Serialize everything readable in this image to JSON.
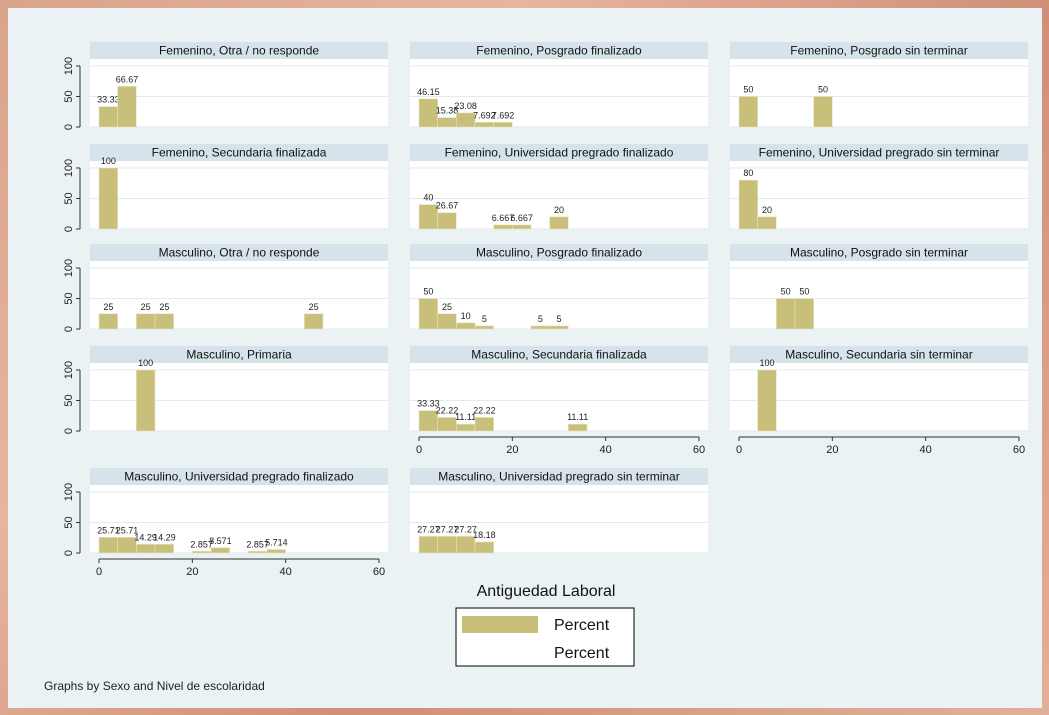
{
  "chart_data": {
    "type": "bar",
    "xlabel": "Antiguedad Laboral",
    "note": "Graphs by Sexo and Nivel de escolaridad",
    "legend": [
      "Percent",
      "Percent"
    ],
    "legend_position": "bottom",
    "xlim": [
      0,
      60
    ],
    "ylim": [
      0,
      100
    ],
    "xticks": [
      0,
      20,
      40,
      60
    ],
    "yticks": [
      0,
      50,
      100
    ],
    "bin_width": 4,
    "bar_color": "#c8bf7b",
    "header_color": "#d6e3ea",
    "grid": true,
    "panels": [
      {
        "title": "Femenino, Otra / no responde",
        "bars": [
          {
            "x": 0,
            "value": 33.33,
            "label": "33.33"
          },
          {
            "x": 4,
            "value": 66.67,
            "label": "66.67"
          }
        ]
      },
      {
        "title": "Femenino, Posgrado finalizado",
        "bars": [
          {
            "x": 0,
            "value": 46.15,
            "label": "46.15"
          },
          {
            "x": 4,
            "value": 15.38,
            "label": "15.38"
          },
          {
            "x": 8,
            "value": 23.08,
            "label": "23.08"
          },
          {
            "x": 12,
            "value": 7.692,
            "label": "7.692"
          },
          {
            "x": 16,
            "value": 7.692,
            "label": "7.692"
          }
        ]
      },
      {
        "title": "Femenino, Posgrado sin terminar",
        "bars": [
          {
            "x": 0,
            "value": 50,
            "label": "50"
          },
          {
            "x": 16,
            "value": 50,
            "label": "50"
          }
        ]
      },
      {
        "title": "Femenino, Secundaria finalizada",
        "bars": [
          {
            "x": 0,
            "value": 100,
            "label": "100"
          }
        ]
      },
      {
        "title": "Femenino, Universidad pregrado finalizado",
        "bars": [
          {
            "x": 0,
            "value": 40,
            "label": "40"
          },
          {
            "x": 4,
            "value": 26.67,
            "label": "26.67"
          },
          {
            "x": 16,
            "value": 6.667,
            "label": "6.667"
          },
          {
            "x": 20,
            "value": 6.667,
            "label": "6.667"
          },
          {
            "x": 28,
            "value": 20,
            "label": "20"
          }
        ]
      },
      {
        "title": "Femenino, Universidad pregrado sin terminar",
        "bars": [
          {
            "x": 0,
            "value": 80,
            "label": "80"
          },
          {
            "x": 4,
            "value": 20,
            "label": "20"
          }
        ]
      },
      {
        "title": "Masculino, Otra / no responde",
        "bars": [
          {
            "x": 0,
            "value": 25,
            "label": "25"
          },
          {
            "x": 8,
            "value": 25,
            "label": "25"
          },
          {
            "x": 12,
            "value": 25,
            "label": "25"
          },
          {
            "x": 44,
            "value": 25,
            "label": "25"
          }
        ]
      },
      {
        "title": "Masculino, Posgrado finalizado",
        "bars": [
          {
            "x": 0,
            "value": 50,
            "label": "50"
          },
          {
            "x": 4,
            "value": 25,
            "label": "25"
          },
          {
            "x": 8,
            "value": 10,
            "label": "10"
          },
          {
            "x": 12,
            "value": 5,
            "label": "5"
          },
          {
            "x": 24,
            "value": 5,
            "label": "5"
          },
          {
            "x": 28,
            "value": 5,
            "label": "5"
          }
        ]
      },
      {
        "title": "Masculino, Posgrado sin terminar",
        "bars": [
          {
            "x": 8,
            "value": 50,
            "label": "50"
          },
          {
            "x": 12,
            "value": 50,
            "label": "50"
          }
        ]
      },
      {
        "title": "Masculino, Primaria",
        "bars": [
          {
            "x": 8,
            "value": 100,
            "label": "100"
          }
        ]
      },
      {
        "title": "Masculino, Secundaria finalizada",
        "bars": [
          {
            "x": 0,
            "value": 33.33,
            "label": "33.33"
          },
          {
            "x": 4,
            "value": 22.22,
            "label": "22.22"
          },
          {
            "x": 8,
            "value": 11.11,
            "label": "11.11"
          },
          {
            "x": 12,
            "value": 22.22,
            "label": "22.22"
          },
          {
            "x": 32,
            "value": 11.11,
            "label": "11.11"
          }
        ]
      },
      {
        "title": "Masculino, Secundaria sin terminar",
        "bars": [
          {
            "x": 4,
            "value": 100,
            "label": "100"
          }
        ]
      },
      {
        "title": "Masculino, Universidad pregrado finalizado",
        "bars": [
          {
            "x": 0,
            "value": 25.71,
            "label": "25.71"
          },
          {
            "x": 4,
            "value": 25.71,
            "label": "25.71"
          },
          {
            "x": 8,
            "value": 14.29,
            "label": "14.29"
          },
          {
            "x": 12,
            "value": 14.29,
            "label": "14.29"
          },
          {
            "x": 20,
            "value": 2.857,
            "label": "2.857"
          },
          {
            "x": 24,
            "value": 8.571,
            "label": "8.571"
          },
          {
            "x": 32,
            "value": 2.857,
            "label": "2.857"
          },
          {
            "x": 36,
            "value": 5.714,
            "label": "5.714"
          }
        ]
      },
      {
        "title": "Masculino, Universidad pregrado sin terminar",
        "bars": [
          {
            "x": 0,
            "value": 27.27,
            "label": "27.27"
          },
          {
            "x": 4,
            "value": 27.27,
            "label": "27.27"
          },
          {
            "x": 8,
            "value": 27.27,
            "label": "27.27"
          },
          {
            "x": 12,
            "value": 18.18,
            "label": "18.18"
          }
        ]
      }
    ]
  }
}
